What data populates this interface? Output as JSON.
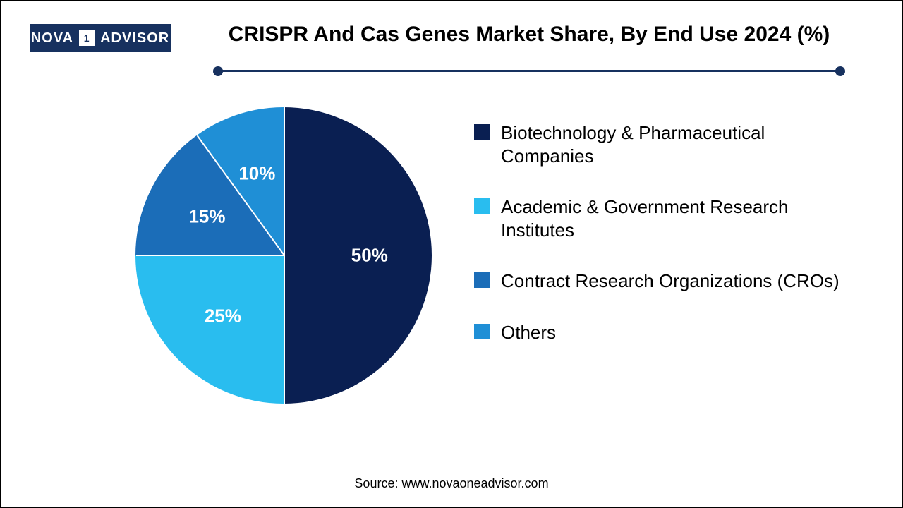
{
  "logo": {
    "part1": "NOVA",
    "part2": "1",
    "part3": "ADVISOR"
  },
  "title": "CRISPR And Cas Genes Market Share, By End Use 2024 (%)",
  "source": "Source: www.novaoneadvisor.com",
  "rule": {
    "line_color": "#17315f",
    "dot_color": "#17315f"
  },
  "chart": {
    "type": "pie",
    "background_color": "#ffffff",
    "title_fontsize": 30,
    "legend_fontsize": 26,
    "label_fontsize": 26,
    "label_color": "#ffffff",
    "divider_color": "#ffffff",
    "slices": [
      {
        "label": "Biotechnology & Pharmaceutical Companies",
        "value": 50,
        "value_text": "50%",
        "color": "#0a1f52"
      },
      {
        "label": "Academic & Government Research Institutes",
        "value": 25,
        "value_text": "25%",
        "color": "#29bdef"
      },
      {
        "label": "Contract Research Organizations (CROs)",
        "value": 15,
        "value_text": "15%",
        "color": "#1b6db8"
      },
      {
        "label": "Others",
        "value": 10,
        "value_text": "10%",
        "color": "#1f8fd6"
      }
    ]
  }
}
